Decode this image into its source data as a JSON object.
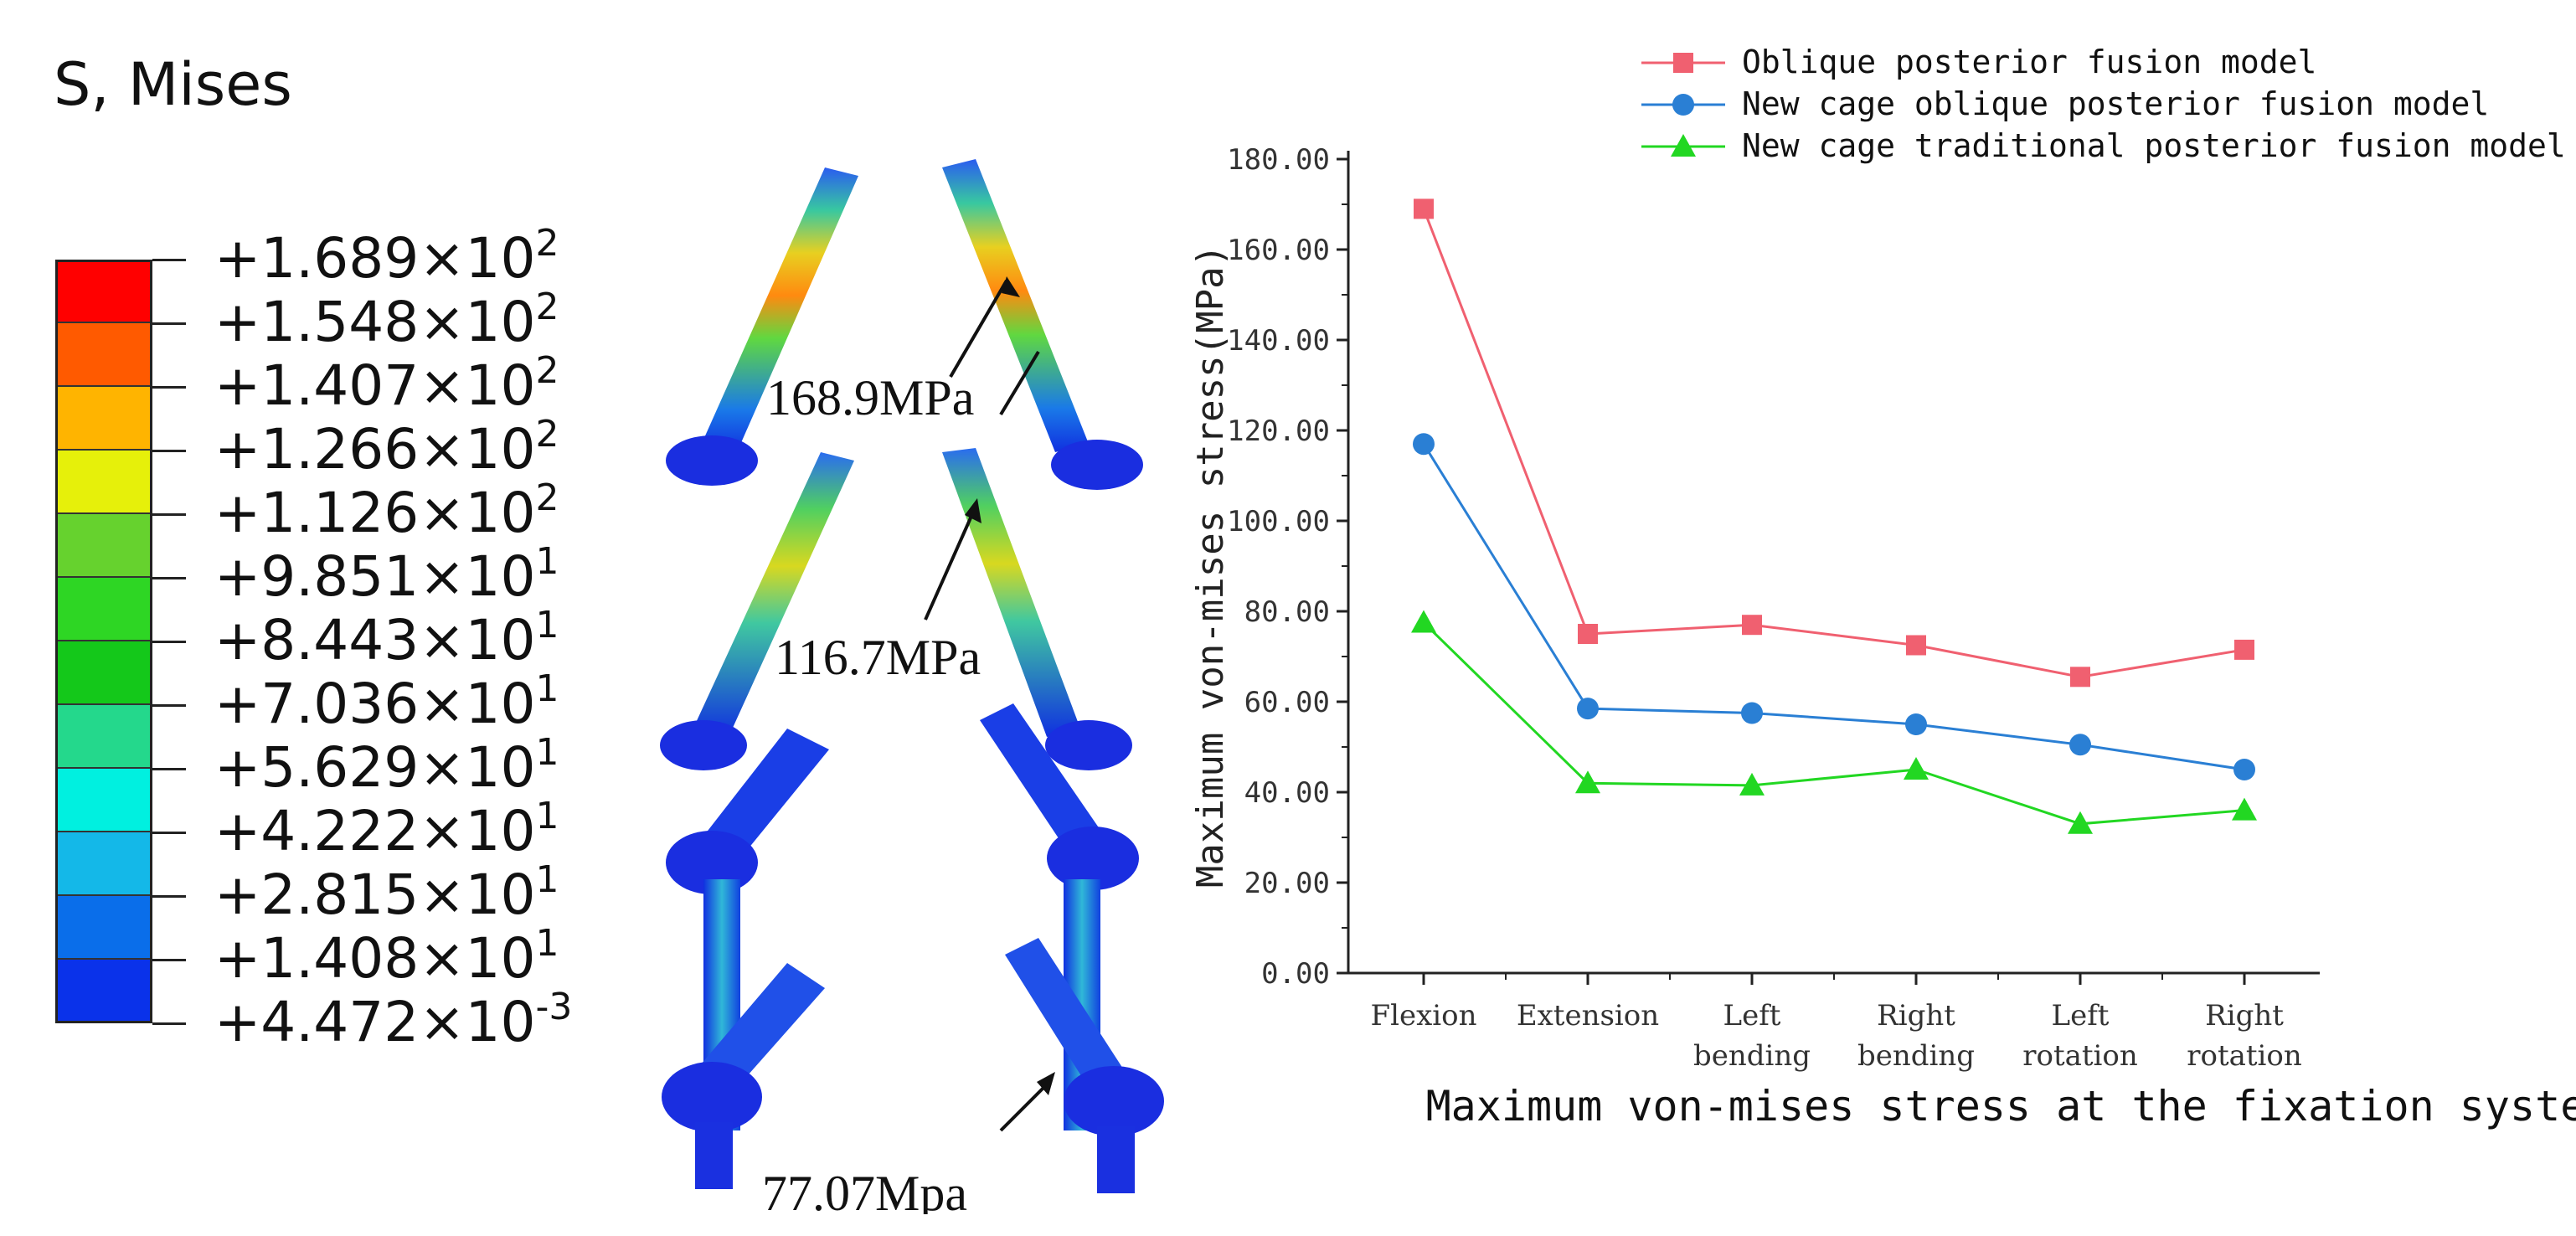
{
  "legend": {
    "title": "S, Mises",
    "colors": [
      "#ff0000",
      "#ff5a00",
      "#ffb400",
      "#e6f00a",
      "#66d22e",
      "#2ed624",
      "#14c81a",
      "#24d88c",
      "#00f0e0",
      "#14b8e8",
      "#0a6eea",
      "#0a32ea"
    ],
    "labels": [
      {
        "mant": "+1.689×10",
        "exp": "2"
      },
      {
        "mant": "+1.548×10",
        "exp": "2"
      },
      {
        "mant": "+1.407×10",
        "exp": "2"
      },
      {
        "mant": "+1.266×10",
        "exp": "2"
      },
      {
        "mant": "+1.126×10",
        "exp": "2"
      },
      {
        "mant": "+9.851×10",
        "exp": "1"
      },
      {
        "mant": "+8.443×10",
        "exp": "1"
      },
      {
        "mant": "+7.036×10",
        "exp": "1"
      },
      {
        "mant": "+5.629×10",
        "exp": "1"
      },
      {
        "mant": "+4.222×10",
        "exp": "1"
      },
      {
        "mant": "+2.815×10",
        "exp": "1"
      },
      {
        "mant": "+1.408×10",
        "exp": "1"
      },
      {
        "mant": "+4.472×10",
        "exp": "-3"
      }
    ]
  },
  "fea": {
    "annotations": [
      "168.9MPa",
      "116.7MPa",
      "77.07Mpa"
    ]
  },
  "chart_data": {
    "type": "line",
    "categories": [
      [
        "Flexion"
      ],
      [
        "Extension"
      ],
      [
        "Left",
        "bending"
      ],
      [
        "Right",
        "bending"
      ],
      [
        "Left",
        "rotation"
      ],
      [
        "Right",
        "rotation"
      ]
    ],
    "series": [
      {
        "name": "Oblique posterior fusion model",
        "marker": "square",
        "color": "#f06070",
        "values": [
          169,
          75,
          77,
          72.5,
          65.5,
          71.5
        ]
      },
      {
        "name": "New cage oblique posterior fusion model",
        "marker": "circle",
        "color": "#2a7fd4",
        "values": [
          117,
          58.5,
          57.5,
          55,
          50.5,
          45
        ]
      },
      {
        "name": "New cage traditional posterior fusion model",
        "marker": "triangle",
        "color": "#22d722",
        "values": [
          77.5,
          42,
          41.5,
          45,
          33,
          36
        ]
      }
    ],
    "ylabel": "Maximum von-mises stress(MPa)",
    "caption": "Maximum von-mises stress at the fixation system",
    "yticks": [
      "0.00",
      "20.00",
      "40.00",
      "60.00",
      "80.00",
      "100.00",
      "120.00",
      "140.00",
      "160.00",
      "180.00"
    ],
    "ylim": [
      0,
      180
    ],
    "legend_position": "top"
  }
}
